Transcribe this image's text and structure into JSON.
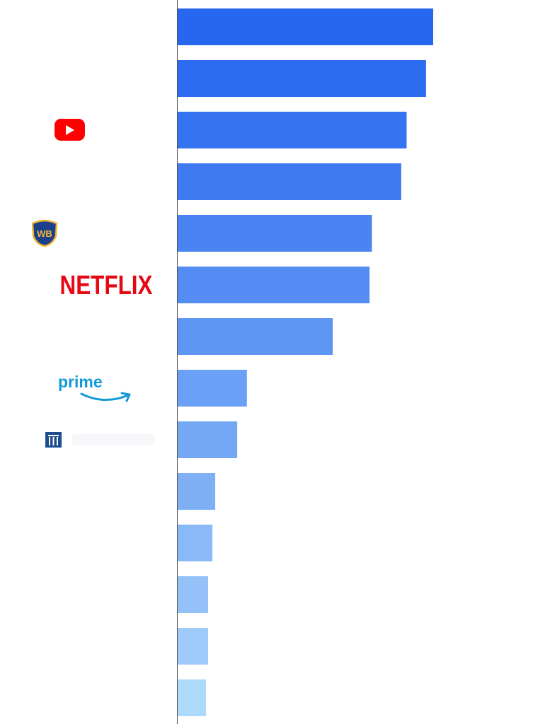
{
  "chart_data": {
    "type": "bar",
    "orientation": "horizontal",
    "title": "",
    "xlabel": "",
    "ylabel": "",
    "xlim": [
      0,
      100
    ],
    "grid": false,
    "legend": "none",
    "categories": [
      {
        "brand": "",
        "icon": ""
      },
      {
        "brand": "",
        "icon": ""
      },
      {
        "brand": "YouTube",
        "icon": "youtube-logo"
      },
      {
        "brand": "",
        "icon": ""
      },
      {
        "brand": "WB",
        "icon": "warner-bros-logo"
      },
      {
        "brand": "NETFLIX",
        "icon": "netflix-logo"
      },
      {
        "brand": "",
        "icon": ""
      },
      {
        "brand": "prime",
        "icon": "prime-video-logo"
      },
      {
        "brand": "",
        "icon": "faded-studio-logo"
      },
      {
        "brand": "",
        "icon": ""
      },
      {
        "brand": "",
        "icon": ""
      },
      {
        "brand": "",
        "icon": ""
      },
      {
        "brand": "",
        "icon": ""
      },
      {
        "brand": "",
        "icon": ""
      }
    ],
    "values": [
      100,
      97.2,
      89.6,
      87.5,
      76.0,
      75.1,
      60.7,
      27.1,
      23.3,
      14.7,
      13.6,
      11.9,
      11.9,
      11.1
    ],
    "colors": [
      "#2767ef",
      "#2b6cf0",
      "#3574f1",
      "#3f7af2",
      "#4a84f2",
      "#548cf3",
      "#5f96f4",
      "#6aa0f5",
      "#74a8f5",
      "#7fb0f6",
      "#8ab9f7",
      "#94c2f8",
      "#9ecbf9",
      "#acdafa"
    ]
  }
}
